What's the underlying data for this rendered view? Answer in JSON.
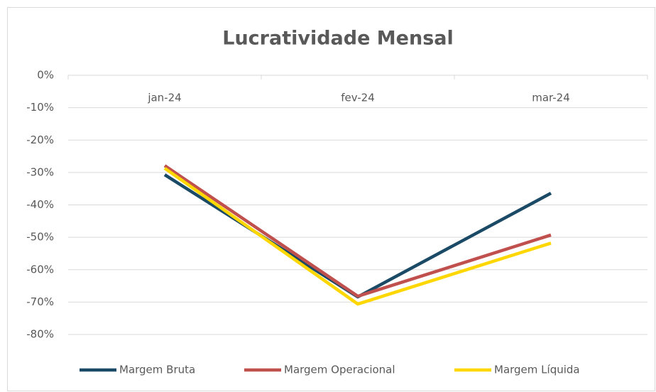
{
  "chart_data": {
    "type": "line",
    "title": "Lucratividade Mensal",
    "categories": [
      "jan-24",
      "fev-24",
      "mar-24"
    ],
    "series": [
      {
        "name": "Margem Bruta",
        "color": "#1b4a66",
        "values": [
          -30.7,
          -68.4,
          -36.4
        ]
      },
      {
        "name": "Margem Operacional",
        "color": "#c0504d",
        "values": [
          -27.9,
          -68.2,
          -49.3
        ]
      },
      {
        "name": "Margem Líquida",
        "color": "#ffd700",
        "values": [
          -28.7,
          -70.6,
          -51.8
        ]
      }
    ],
    "ylim": [
      -80,
      0
    ],
    "yticks": [
      {
        "value": 0,
        "label": "0%"
      },
      {
        "value": -10,
        "label": "-10%"
      },
      {
        "value": -20,
        "label": "-20%"
      },
      {
        "value": -30,
        "label": "-30%"
      },
      {
        "value": -40,
        "label": "-40%"
      },
      {
        "value": -50,
        "label": "-50%"
      },
      {
        "value": -60,
        "label": "-60%"
      },
      {
        "value": -70,
        "label": "-70%"
      },
      {
        "value": -80,
        "label": "-80%"
      }
    ],
    "grid": true,
    "legend": "bottom"
  }
}
